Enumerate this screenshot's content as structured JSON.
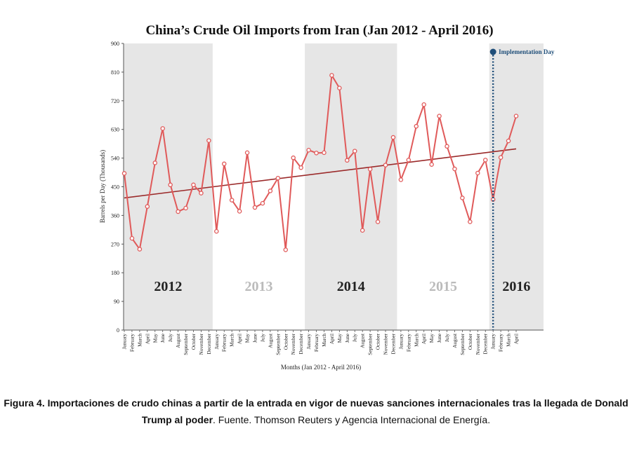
{
  "chart_data": {
    "type": "line",
    "title": "China’s Crude Oil Imports from Iran (Jan 2012 - April 2016)",
    "xlabel": "Months (Jan 2012 - April 2016)",
    "ylabel": "Barrels per Day (Thousands)",
    "ylim": [
      0,
      900
    ],
    "yticks": [
      0,
      90,
      180,
      270,
      360,
      450,
      540,
      630,
      720,
      810,
      900
    ],
    "grid": false,
    "colors": {
      "series": "#e05a5a",
      "trend": "#9b2a2a",
      "shade": "#e6e6e6",
      "annotation": "#1f4e79",
      "year_dark": "#222222",
      "year_light": "#bbbbbb"
    },
    "categories": [
      "January",
      "February",
      "March",
      "April",
      "May",
      "June",
      "July",
      "August",
      "September",
      "October",
      "November",
      "December",
      "January",
      "February",
      "March",
      "April",
      "May",
      "June",
      "July",
      "August",
      "September",
      "October",
      "November",
      "December",
      "January",
      "February",
      "March",
      "April",
      "May",
      "June",
      "July",
      "August",
      "September",
      "October",
      "November",
      "December",
      "January",
      "February",
      "March",
      "April",
      "May",
      "June",
      "July",
      "August",
      "September",
      "October",
      "November",
      "December",
      "January",
      "February",
      "March",
      "April"
    ],
    "series": [
      {
        "values": [
          492,
          288,
          254,
          388,
          525,
          633,
          456,
          372,
          383,
          456,
          430,
          595,
          310,
          522,
          408,
          373,
          557,
          385,
          398,
          437,
          477,
          252,
          541,
          510,
          565,
          556,
          557,
          800,
          760,
          533,
          562,
          313,
          505,
          340,
          518,
          605,
          472,
          534,
          640,
          708,
          520,
          672,
          577,
          506,
          415,
          340,
          493,
          534,
          410,
          542,
          594,
          672
        ]
      }
    ],
    "trend": {
      "start": 415,
      "end": 569
    },
    "year_bands": [
      {
        "label": "2012",
        "start": 0,
        "end": 11,
        "shaded": true,
        "label_style": "dark"
      },
      {
        "label": "2013",
        "start": 12,
        "end": 23,
        "shaded": false,
        "label_style": "light"
      },
      {
        "label": "2014",
        "start": 24,
        "end": 35,
        "shaded": true,
        "label_style": "dark"
      },
      {
        "label": "2015",
        "start": 36,
        "end": 47,
        "shaded": false,
        "label_style": "light"
      },
      {
        "label": "2016",
        "start": 48,
        "end": 51,
        "shaded": true,
        "label_style": "dark"
      }
    ],
    "annotation": {
      "label": "Implementation Day",
      "month_index": 48
    }
  },
  "caption": {
    "bold": "Figura 4. Importaciones de crudo chinas a partir de la entrada en vigor de nuevas sanciones internacionales tras la llegada de Donald Trump al poder",
    "normal": ". Fuente. Thomson Reuters y Agencia Internacional de Energía."
  }
}
